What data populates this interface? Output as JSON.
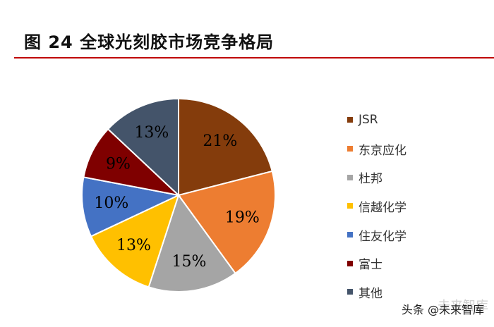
{
  "title": "图 24 全球光刻胶市场竞争格局",
  "chart_data": {
    "type": "pie",
    "title": "图 24 全球光刻胶市场竞争格局",
    "legend_position": "right",
    "slices": [
      {
        "label": "JSR",
        "value": 21,
        "display": "21%",
        "color": "#843c0c"
      },
      {
        "label": "东京应化",
        "value": 19,
        "display": "19%",
        "color": "#ed7d31"
      },
      {
        "label": "杜邦",
        "value": 15,
        "display": "15%",
        "color": "#a5a5a5"
      },
      {
        "label": "信越化学",
        "value": 13,
        "display": "13%",
        "color": "#ffc000"
      },
      {
        "label": "住友化学",
        "value": 10,
        "display": "10%",
        "color": "#4472c4"
      },
      {
        "label": "富士",
        "value": 9,
        "display": "9%",
        "color": "#7f0000"
      },
      {
        "label": "其他",
        "value": 13,
        "display": "13%",
        "color": "#44546a"
      }
    ]
  },
  "watermark": {
    "faint": "未来智库",
    "text": "头条 @未来智库"
  }
}
